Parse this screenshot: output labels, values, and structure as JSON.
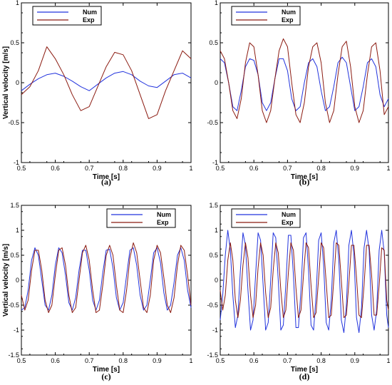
{
  "chart_data": [
    {
      "panel": "(a)",
      "type": "line",
      "xlabel": "Time [s]",
      "ylabel": "Vertical velocity [m/s]",
      "xlim": [
        0.5,
        1.0
      ],
      "ylim": [
        -1,
        1
      ],
      "xticks": [
        "0.5",
        "0.6",
        "0.7",
        "0.8",
        "0.9",
        "1"
      ],
      "yticks": [
        "-1",
        "-0.5",
        "0",
        "0.5",
        "1"
      ],
      "legend": "top-left",
      "series": [
        {
          "name": "Num",
          "color": "#2233dd",
          "x": [
            0.5,
            0.525,
            0.55,
            0.575,
            0.6,
            0.625,
            0.65,
            0.675,
            0.7,
            0.725,
            0.75,
            0.775,
            0.8,
            0.825,
            0.85,
            0.875,
            0.9,
            0.925,
            0.95,
            0.975,
            1.0
          ],
          "y": [
            -0.1,
            -0.02,
            0.05,
            0.1,
            0.12,
            0.08,
            0.02,
            -0.05,
            -0.1,
            -0.02,
            0.06,
            0.12,
            0.14,
            0.1,
            0.02,
            -0.04,
            -0.06,
            0.02,
            0.1,
            0.12,
            0.06
          ]
        },
        {
          "name": "Exp",
          "color": "#8b1a10",
          "x": [
            0.5,
            0.525,
            0.55,
            0.575,
            0.6,
            0.625,
            0.65,
            0.675,
            0.7,
            0.725,
            0.75,
            0.775,
            0.8,
            0.825,
            0.85,
            0.875,
            0.9,
            0.925,
            0.95,
            0.975,
            1.0
          ],
          "y": [
            -0.15,
            -0.05,
            0.15,
            0.45,
            0.3,
            0.1,
            -0.15,
            -0.35,
            -0.3,
            -0.05,
            0.2,
            0.38,
            0.35,
            0.15,
            -0.15,
            -0.45,
            -0.4,
            -0.1,
            0.15,
            0.4,
            0.3
          ]
        }
      ]
    },
    {
      "panel": "(b)",
      "type": "line",
      "xlabel": "Time [s]",
      "ylabel": "",
      "xlim": [
        0.5,
        1.0
      ],
      "ylim": [
        -1,
        1
      ],
      "xticks": [
        "0.5",
        "0.6",
        "0.7",
        "0.8",
        "0.9",
        "1"
      ],
      "yticks": [
        "-1",
        "-0.5",
        "0",
        "0.5",
        "1"
      ],
      "legend": "top-left",
      "series": [
        {
          "name": "Num",
          "color": "#2233dd",
          "x": [
            0.5,
            0.5125,
            0.525,
            0.5375,
            0.55,
            0.5625,
            0.575,
            0.5875,
            0.6,
            0.6125,
            0.625,
            0.6375,
            0.65,
            0.6625,
            0.675,
            0.6875,
            0.7,
            0.7125,
            0.725,
            0.7375,
            0.75,
            0.7625,
            0.775,
            0.7875,
            0.8,
            0.8125,
            0.825,
            0.8375,
            0.85,
            0.8625,
            0.875,
            0.8875,
            0.9,
            0.9125,
            0.925,
            0.9375,
            0.95,
            0.9625,
            0.975,
            0.9875,
            1.0
          ],
          "y": [
            0.3,
            0.25,
            0.0,
            -0.3,
            -0.35,
            -0.1,
            0.2,
            0.3,
            0.28,
            0.1,
            -0.25,
            -0.35,
            -0.25,
            0.05,
            0.3,
            0.3,
            0.15,
            -0.2,
            -0.35,
            -0.3,
            0.0,
            0.25,
            0.3,
            0.2,
            -0.1,
            -0.35,
            -0.3,
            -0.05,
            0.25,
            0.32,
            0.25,
            -0.05,
            -0.35,
            -0.3,
            -0.05,
            0.25,
            0.3,
            0.2,
            -0.15,
            -0.3,
            -0.2
          ]
        },
        {
          "name": "Exp",
          "color": "#8b1a10",
          "x": [
            0.5,
            0.5125,
            0.525,
            0.5375,
            0.55,
            0.5625,
            0.575,
            0.5875,
            0.6,
            0.6125,
            0.625,
            0.6375,
            0.65,
            0.6625,
            0.675,
            0.6875,
            0.7,
            0.7125,
            0.725,
            0.7375,
            0.75,
            0.7625,
            0.775,
            0.7875,
            0.8,
            0.8125,
            0.825,
            0.8375,
            0.85,
            0.8625,
            0.875,
            0.8875,
            0.9,
            0.9125,
            0.925,
            0.9375,
            0.95,
            0.9625,
            0.975,
            0.9875,
            1.0
          ],
          "y": [
            0.4,
            0.3,
            0.0,
            -0.35,
            -0.45,
            -0.2,
            0.25,
            0.5,
            0.45,
            0.1,
            -0.35,
            -0.5,
            -0.35,
            0.05,
            0.4,
            0.55,
            0.45,
            0.0,
            -0.4,
            -0.5,
            -0.25,
            0.2,
            0.45,
            0.5,
            0.25,
            -0.25,
            -0.5,
            -0.35,
            0.1,
            0.45,
            0.52,
            0.2,
            -0.3,
            -0.5,
            -0.35,
            0.1,
            0.45,
            0.5,
            0.15,
            -0.4,
            -0.3
          ]
        }
      ]
    },
    {
      "panel": "(c)",
      "type": "line",
      "xlabel": "Time [s]",
      "ylabel": "Vertical velocity [m/s]",
      "xlim": [
        0.5,
        1.0
      ],
      "ylim": [
        -1.5,
        1.5
      ],
      "xticks": [
        "0.5",
        "0.6",
        "0.7",
        "0.8",
        "0.9",
        "1"
      ],
      "yticks": [
        "-1.5",
        "-1",
        "-0.5",
        "0",
        "0.5",
        "1",
        "1.5"
      ],
      "legend": "top-right",
      "series": [
        {
          "name": "Num",
          "color": "#2233dd",
          "x": [
            0.5,
            0.51,
            0.52,
            0.53,
            0.54,
            0.55,
            0.56,
            0.57,
            0.58,
            0.59,
            0.6,
            0.61,
            0.62,
            0.63,
            0.64,
            0.65,
            0.66,
            0.67,
            0.68,
            0.69,
            0.7,
            0.71,
            0.72,
            0.73,
            0.74,
            0.75,
            0.76,
            0.77,
            0.78,
            0.79,
            0.8,
            0.81,
            0.82,
            0.83,
            0.84,
            0.85,
            0.86,
            0.87,
            0.88,
            0.89,
            0.9,
            0.91,
            0.92,
            0.93,
            0.94,
            0.95,
            0.96,
            0.97,
            0.98,
            0.99,
            1.0
          ],
          "y": [
            -0.6,
            -0.55,
            -0.2,
            0.4,
            0.65,
            0.5,
            0.0,
            -0.5,
            -0.6,
            -0.3,
            0.3,
            0.65,
            0.55,
            0.1,
            -0.45,
            -0.6,
            -0.35,
            0.2,
            0.6,
            0.6,
            0.2,
            -0.4,
            -0.6,
            -0.4,
            0.15,
            0.6,
            0.62,
            0.25,
            -0.35,
            -0.6,
            -0.45,
            0.1,
            0.6,
            0.65,
            0.3,
            -0.3,
            -0.6,
            -0.5,
            0.0,
            0.55,
            0.65,
            0.35,
            -0.25,
            -0.6,
            -0.5,
            -0.05,
            0.5,
            0.65,
            0.4,
            -0.2,
            -0.55
          ]
        },
        {
          "name": "Exp",
          "color": "#8b1a10",
          "x": [
            0.5,
            0.51,
            0.52,
            0.53,
            0.54,
            0.55,
            0.56,
            0.57,
            0.58,
            0.59,
            0.6,
            0.61,
            0.62,
            0.63,
            0.64,
            0.65,
            0.66,
            0.67,
            0.68,
            0.69,
            0.7,
            0.71,
            0.72,
            0.73,
            0.74,
            0.75,
            0.76,
            0.77,
            0.78,
            0.79,
            0.8,
            0.81,
            0.82,
            0.83,
            0.84,
            0.85,
            0.86,
            0.87,
            0.88,
            0.89,
            0.9,
            0.91,
            0.92,
            0.93,
            0.94,
            0.95,
            0.96,
            0.97,
            0.98,
            0.99,
            1.0
          ],
          "y": [
            -0.3,
            -0.6,
            -0.4,
            0.2,
            0.6,
            0.6,
            0.2,
            -0.4,
            -0.65,
            -0.5,
            0.1,
            0.6,
            0.65,
            0.3,
            -0.3,
            -0.65,
            -0.55,
            0.0,
            0.55,
            0.7,
            0.4,
            -0.2,
            -0.65,
            -0.6,
            -0.1,
            0.5,
            0.7,
            0.5,
            -0.1,
            -0.6,
            -0.65,
            -0.2,
            0.45,
            0.75,
            0.55,
            0.0,
            -0.55,
            -0.65,
            -0.3,
            0.4,
            0.7,
            0.55,
            0.05,
            -0.5,
            -0.65,
            -0.35,
            0.3,
            0.7,
            0.6,
            0.1,
            -0.5
          ]
        }
      ]
    },
    {
      "panel": "(d)",
      "type": "line",
      "xlabel": "Time [s]",
      "ylabel": "",
      "xlim": [
        0.5,
        1.0
      ],
      "ylim": [
        -1.5,
        1.5
      ],
      "xticks": [
        "0.5",
        "0.6",
        "0.7",
        "0.8",
        "0.9",
        "1"
      ],
      "yticks": [
        "-1.5",
        "-1",
        "-0.5",
        "0",
        "0.5",
        "1",
        "1.5"
      ],
      "legend": "top-left",
      "series": [
        {
          "name": "Num",
          "color": "#2233dd",
          "x": [
            0.5,
            0.5075,
            0.515,
            0.5225,
            0.53,
            0.5375,
            0.545,
            0.5525,
            0.56,
            0.5675,
            0.575,
            0.5825,
            0.59,
            0.5975,
            0.605,
            0.6125,
            0.62,
            0.6275,
            0.635,
            0.6425,
            0.65,
            0.6575,
            0.665,
            0.6725,
            0.68,
            0.6875,
            0.695,
            0.7025,
            0.71,
            0.7175,
            0.725,
            0.7325,
            0.74,
            0.7475,
            0.755,
            0.7625,
            0.77,
            0.7775,
            0.785,
            0.7925,
            0.8,
            0.8075,
            0.815,
            0.8225,
            0.83,
            0.8375,
            0.845,
            0.8525,
            0.86,
            0.8675,
            0.875,
            0.8825,
            0.89,
            0.8975,
            0.905,
            0.9125,
            0.92,
            0.9275,
            0.935,
            0.9425,
            0.95,
            0.9575,
            0.965,
            0.9725,
            0.98,
            0.9875,
            0.995,
            1.0
          ],
          "y": [
            -0.8,
            -0.3,
            0.5,
            1.0,
            0.6,
            -0.3,
            -0.95,
            -0.7,
            0.2,
            0.95,
            0.7,
            -0.2,
            -1.0,
            -0.8,
            0.1,
            0.95,
            0.8,
            -0.1,
            -1.0,
            -0.85,
            0.0,
            0.95,
            0.85,
            0.0,
            -1.0,
            -0.9,
            -0.1,
            0.9,
            0.9,
            0.1,
            -0.95,
            -0.95,
            -0.2,
            0.85,
            0.95,
            0.2,
            -0.9,
            -1.0,
            -0.3,
            0.8,
            0.95,
            0.3,
            -0.85,
            -1.0,
            -0.4,
            0.75,
            1.0,
            0.4,
            -0.8,
            -1.05,
            -0.5,
            0.7,
            1.0,
            0.5,
            -0.75,
            -1.05,
            -0.55,
            0.65,
            1.0,
            0.6,
            -0.7,
            -1.0,
            -0.6,
            0.6,
            1.0,
            0.55,
            -0.7,
            -0.95
          ]
        },
        {
          "name": "Exp",
          "color": "#8b1a10",
          "x": [
            0.5,
            0.5075,
            0.515,
            0.5225,
            0.53,
            0.5375,
            0.545,
            0.5525,
            0.56,
            0.5675,
            0.575,
            0.5825,
            0.59,
            0.5975,
            0.605,
            0.6125,
            0.62,
            0.6275,
            0.635,
            0.6425,
            0.65,
            0.6575,
            0.665,
            0.6725,
            0.68,
            0.6875,
            0.695,
            0.7025,
            0.71,
            0.7175,
            0.725,
            0.7325,
            0.74,
            0.7475,
            0.755,
            0.7625,
            0.77,
            0.7775,
            0.785,
            0.7925,
            0.8,
            0.8075,
            0.815,
            0.8225,
            0.83,
            0.8375,
            0.845,
            0.8525,
            0.86,
            0.8675,
            0.875,
            0.8825,
            0.89,
            0.8975,
            0.905,
            0.9125,
            0.92,
            0.9275,
            0.935,
            0.9425,
            0.95,
            0.9575,
            0.965,
            0.9725,
            0.98,
            0.9875,
            0.995,
            1.0
          ],
          "y": [
            -0.2,
            -0.6,
            -0.3,
            0.4,
            0.75,
            0.4,
            -0.4,
            -0.75,
            -0.4,
            0.3,
            0.75,
            0.45,
            -0.3,
            -0.75,
            -0.5,
            0.25,
            0.75,
            0.5,
            -0.25,
            -0.75,
            -0.55,
            0.2,
            0.75,
            0.55,
            -0.2,
            -0.75,
            -0.6,
            0.15,
            0.75,
            0.6,
            -0.15,
            -0.75,
            -0.6,
            0.1,
            0.75,
            0.65,
            -0.1,
            -0.75,
            -0.65,
            0.05,
            0.75,
            0.65,
            -0.05,
            -0.75,
            -0.7,
            0.0,
            0.75,
            0.7,
            0.0,
            -0.75,
            -0.7,
            -0.05,
            0.7,
            0.7,
            0.05,
            -0.7,
            -0.75,
            -0.1,
            0.7,
            0.7,
            0.1,
            -0.7,
            -0.7,
            -0.1,
            0.65,
            0.6,
            -0.4,
            -0.6
          ]
        }
      ]
    }
  ]
}
